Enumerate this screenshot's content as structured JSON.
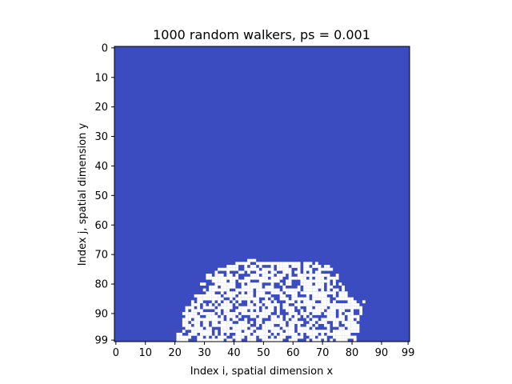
{
  "chart_data": {
    "type": "heatmap",
    "title": "1000 random walkers, ps = 0.001",
    "xlabel": "Index i, spatial dimension x",
    "ylabel": "Index j, spatial dimension y",
    "grid_size": [
      100,
      100
    ],
    "x_ticks": [
      0,
      10,
      20,
      30,
      40,
      50,
      60,
      70,
      80,
      90,
      99
    ],
    "y_ticks": [
      0,
      10,
      20,
      30,
      40,
      50,
      60,
      70,
      80,
      90,
      99
    ],
    "xlim": [
      0,
      99
    ],
    "ylim": [
      99,
      0
    ],
    "grid": false,
    "colors": {
      "empty": "#3b4cc0",
      "occupied": "#ffffff"
    },
    "occupied_row_ranges": [
      {
        "row": 72,
        "x_start": 45,
        "x_end": 47
      },
      {
        "row": 73,
        "x_start": 41,
        "x_end": 68
      },
      {
        "row": 74,
        "x_start": 37,
        "x_end": 72
      },
      {
        "row": 75,
        "x_start": 34,
        "x_end": 73
      },
      {
        "row": 76,
        "x_start": 32,
        "x_end": 74
      },
      {
        "row": 77,
        "x_start": 31,
        "x_end": 75
      },
      {
        "row": 78,
        "x_start": 30,
        "x_end": 75
      },
      {
        "row": 79,
        "x_start": 30,
        "x_end": 76
      },
      {
        "row": 80,
        "x_start": 29,
        "x_end": 76
      },
      {
        "row": 81,
        "x_start": 29,
        "x_end": 77
      },
      {
        "row": 82,
        "x_start": 28,
        "x_end": 77
      },
      {
        "row": 83,
        "x_start": 28,
        "x_end": 78
      },
      {
        "row": 84,
        "x_start": 27,
        "x_end": 79
      },
      {
        "row": 85,
        "x_start": 27,
        "x_end": 80
      },
      {
        "row": 86,
        "x_start": 26,
        "x_end": 84
      },
      {
        "row": 87,
        "x_start": 25,
        "x_end": 84
      },
      {
        "row": 88,
        "x_start": 24,
        "x_end": 83
      },
      {
        "row": 89,
        "x_start": 24,
        "x_end": 83
      },
      {
        "row": 90,
        "x_start": 23,
        "x_end": 83
      },
      {
        "row": 91,
        "x_start": 23,
        "x_end": 83
      },
      {
        "row": 92,
        "x_start": 23,
        "x_end": 82
      },
      {
        "row": 93,
        "x_start": 23,
        "x_end": 82
      },
      {
        "row": 94,
        "x_start": 22,
        "x_end": 82
      },
      {
        "row": 95,
        "x_start": 22,
        "x_end": 82
      },
      {
        "row": 96,
        "x_start": 21,
        "x_end": 82
      },
      {
        "row": 97,
        "x_start": 21,
        "x_end": 81
      },
      {
        "row": 98,
        "x_start": 21,
        "x_end": 81
      },
      {
        "row": 99,
        "x_start": 21,
        "x_end": 81
      }
    ],
    "empty_fraction_inside_cluster": 0.3
  }
}
